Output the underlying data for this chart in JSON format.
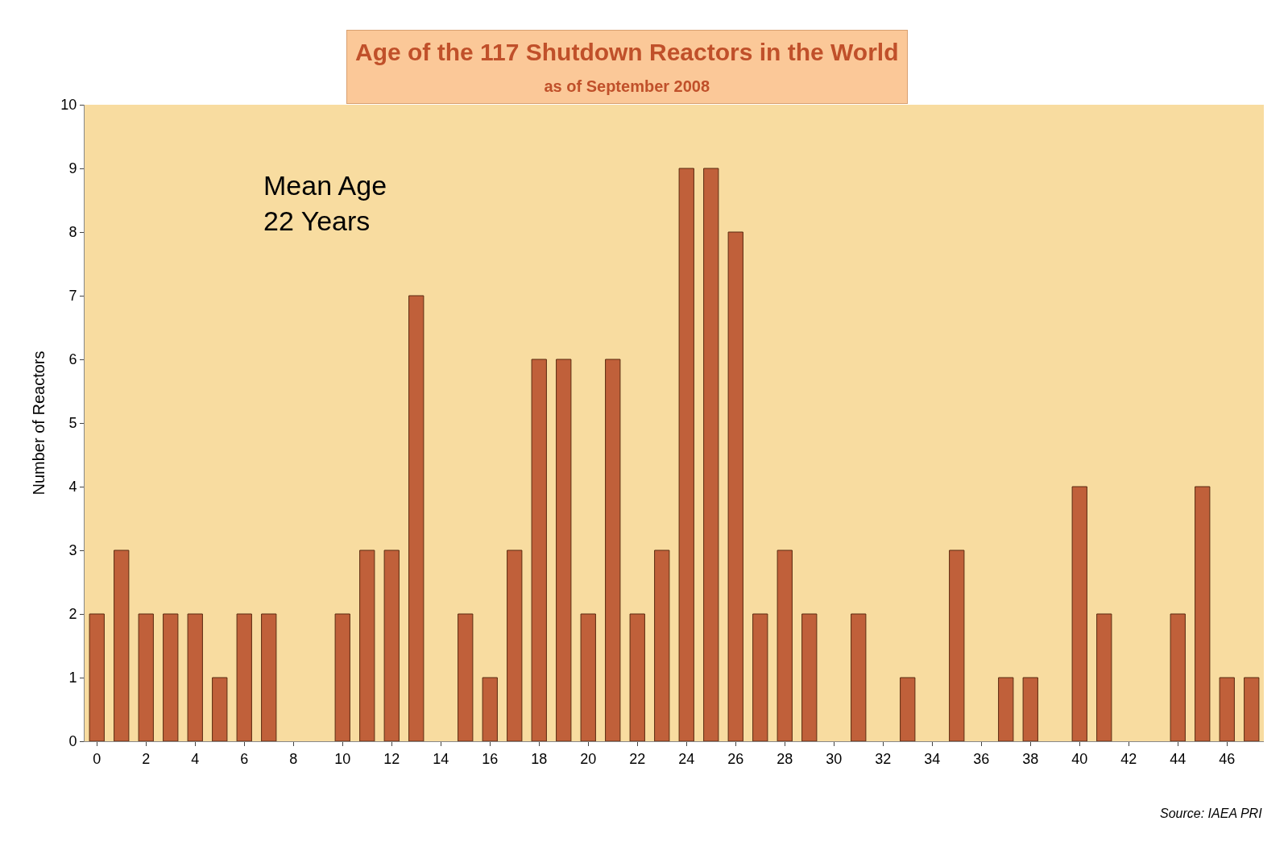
{
  "chart_data": {
    "type": "bar",
    "title": "Age of the 117 Shutdown Reactors in the World",
    "subtitle": "as of September 2008",
    "ylabel": "Number of Reactors",
    "x": [
      0,
      1,
      2,
      3,
      4,
      5,
      6,
      7,
      8,
      9,
      10,
      11,
      12,
      13,
      14,
      15,
      16,
      17,
      18,
      19,
      20,
      21,
      22,
      23,
      24,
      25,
      26,
      27,
      28,
      29,
      30,
      31,
      32,
      33,
      34,
      35,
      36,
      37,
      38,
      39,
      40,
      41,
      42,
      43,
      44,
      45,
      46,
      47
    ],
    "values": [
      2,
      3,
      2,
      2,
      2,
      1,
      2,
      2,
      0,
      0,
      2,
      3,
      3,
      7,
      0,
      2,
      1,
      3,
      6,
      6,
      2,
      6,
      2,
      3,
      9,
      9,
      8,
      2,
      3,
      2,
      0,
      2,
      0,
      1,
      0,
      3,
      0,
      1,
      1,
      0,
      4,
      2,
      0,
      0,
      2,
      4,
      1,
      1
    ],
    "color": "#c0603a",
    "xlim": [
      -0.5,
      47.5
    ],
    "xticks": [
      0,
      2,
      4,
      6,
      8,
      10,
      12,
      14,
      16,
      18,
      20,
      22,
      24,
      26,
      28,
      30,
      32,
      34,
      36,
      38,
      40,
      42,
      44,
      46
    ],
    "ylim": [
      0,
      10
    ],
    "yticks": [
      0,
      1,
      2,
      3,
      4,
      5,
      6,
      7,
      8,
      9,
      10
    ],
    "grid": false,
    "legend": false,
    "annotations": [
      "Mean Age\n22 Years",
      "Source: IAEA PRI"
    ]
  }
}
